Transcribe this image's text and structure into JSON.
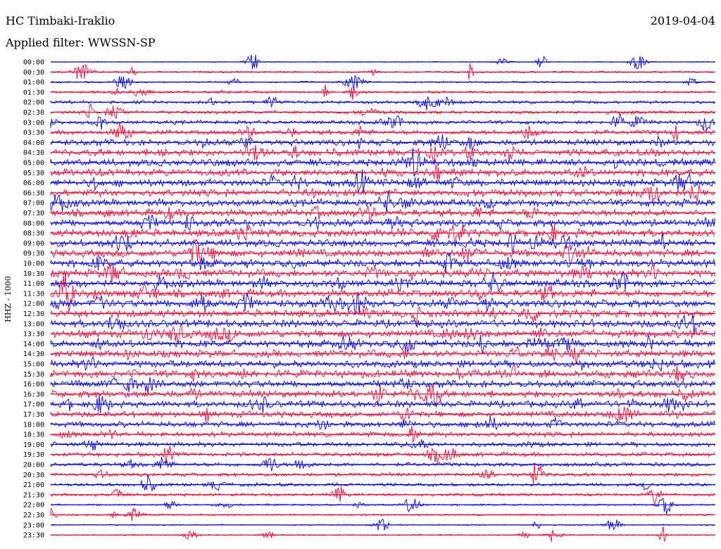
{
  "header": {
    "station": "HC Timbaki-Iraklio",
    "date": "2019-04-04",
    "filter": "Applied filter: WWSSN-SP"
  },
  "chart_data": {
    "type": "line",
    "title": "HC Timbaki-Iraklio",
    "ylabel": "HHZ - 1000",
    "colors": [
      "#0000ff",
      "#ff0033"
    ],
    "tick_labels": [
      "00:00",
      "00:30",
      "01:00",
      "01:30",
      "02:00",
      "02:30",
      "03:00",
      "03:30",
      "04:00",
      "04:30",
      "05:00",
      "05:30",
      "06:00",
      "06:30",
      "07:00",
      "07:30",
      "08:00",
      "08:30",
      "09:00",
      "09:30",
      "10:00",
      "10:30",
      "11:00",
      "11:30",
      "12:00",
      "12:30",
      "13:00",
      "13:30",
      "14:00",
      "14:30",
      "15:00",
      "15:30",
      "16:00",
      "16:30",
      "17:00",
      "17:30",
      "18:00",
      "18:30",
      "19:00",
      "19:30",
      "20:00",
      "20:30",
      "21:00",
      "21:30",
      "22:00",
      "22:30",
      "23:00",
      "23:30"
    ],
    "noise_level": [
      0.5,
      1.2,
      1.0,
      1.5,
      2.0,
      2.2,
      2.5,
      3.0,
      4.0,
      4.5,
      4.6,
      4.8,
      4.8,
      4.7,
      4.6,
      4.6,
      4.8,
      4.8,
      4.9,
      4.9,
      5.0,
      5.0,
      5.0,
      5.0,
      5.0,
      5.0,
      5.0,
      5.0,
      4.9,
      4.8,
      4.8,
      4.8,
      4.6,
      4.5,
      4.3,
      4.0,
      3.6,
      3.2,
      3.0,
      2.8,
      2.6,
      2.4,
      2.2,
      1.8,
      1.2,
      1.0,
      0.8,
      0.7
    ]
  }
}
